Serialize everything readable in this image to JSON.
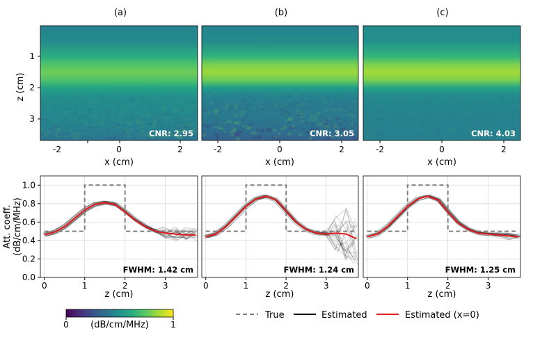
{
  "figure": {
    "panel_labels": [
      "(a)",
      "(b)",
      "(c)"
    ],
    "colorbar": {
      "min_label": "0",
      "max_label": "1",
      "label": "(dB/cm/MHz)"
    },
    "legend": {
      "true_label": "True",
      "estimated_label": "Estimated",
      "estimated_x0_label": "Estimated (x=0)"
    },
    "colors": {
      "true": "#7f7f7f",
      "estimated": "#000000",
      "estimated_x0": "#e31a1c",
      "grid": "#d9d9d9"
    }
  },
  "chart_data": [
    {
      "type": "heatmap",
      "panel": "(a)",
      "xlabel": "x (cm)",
      "ylabel": "z (cm)",
      "xlim": [
        -2.5,
        2.5
      ],
      "ylim": [
        0,
        3.7
      ],
      "xticks": [
        "-2",
        "0",
        "2"
      ],
      "yticks": [
        "1",
        "2",
        "3"
      ],
      "annotation": "CNR: 2.95",
      "depth_profile": {
        "z": [
          0,
          0.5,
          1.0,
          1.25,
          1.5,
          1.75,
          2.0,
          2.25,
          2.5,
          3.0,
          3.5,
          3.7
        ],
        "value": [
          0.45,
          0.48,
          0.62,
          0.72,
          0.78,
          0.72,
          0.58,
          0.5,
          0.48,
          0.46,
          0.42,
          0.38
        ]
      }
    },
    {
      "type": "heatmap",
      "panel": "(b)",
      "xlabel": "x (cm)",
      "ylabel": "",
      "xlim": [
        -2.5,
        2.5
      ],
      "ylim": [
        0,
        3.7
      ],
      "xticks": [
        "-2",
        "0",
        "2"
      ],
      "yticks": [
        "1",
        "2",
        "3"
      ],
      "annotation": "CNR: 3.05",
      "depth_profile": {
        "z": [
          0,
          0.5,
          1.0,
          1.25,
          1.5,
          1.75,
          2.0,
          2.25,
          2.5,
          3.0,
          3.5,
          3.7
        ],
        "value": [
          0.45,
          0.48,
          0.65,
          0.8,
          0.85,
          0.78,
          0.55,
          0.45,
          0.42,
          0.4,
          0.35,
          0.3
        ]
      }
    },
    {
      "type": "heatmap",
      "panel": "(c)",
      "xlabel": "x (cm)",
      "ylabel": "",
      "xlim": [
        -2.5,
        2.5
      ],
      "ylim": [
        0,
        3.7
      ],
      "xticks": [
        "-2",
        "0",
        "2"
      ],
      "yticks": [
        "1",
        "2",
        "3"
      ],
      "annotation": "CNR: 4.03",
      "depth_profile": {
        "z": [
          0,
          0.5,
          1.0,
          1.25,
          1.5,
          1.75,
          2.0,
          2.25,
          2.5,
          3.0,
          3.5,
          3.7
        ],
        "value": [
          0.48,
          0.5,
          0.66,
          0.8,
          0.86,
          0.8,
          0.58,
          0.48,
          0.46,
          0.45,
          0.44,
          0.43
        ]
      }
    },
    {
      "type": "line",
      "panel": "(a)",
      "xlabel": "z (cm)",
      "ylabel": "Att. coeff. (dB/cm/MHz)",
      "xlim": [
        -0.1,
        3.8
      ],
      "ylim": [
        0,
        1.1
      ],
      "xticks": [
        "0",
        "1",
        "2",
        "3"
      ],
      "yticks": [
        "0.0",
        "0.2",
        "0.4",
        "0.6",
        "0.8",
        "1.0"
      ],
      "annotation": "FWHM: 1.42 cm",
      "series": [
        {
          "name": "True",
          "x": [
            0,
            1,
            1,
            2,
            2,
            3.75
          ],
          "y": [
            0.5,
            0.5,
            1.0,
            1.0,
            0.5,
            0.5
          ]
        },
        {
          "name": "Estimated (x=0)",
          "x": [
            0,
            0.25,
            0.5,
            0.75,
            1.0,
            1.25,
            1.5,
            1.75,
            2.0,
            2.25,
            2.5,
            2.75,
            3.0,
            3.25,
            3.5,
            3.75
          ],
          "y": [
            0.46,
            0.49,
            0.55,
            0.64,
            0.73,
            0.79,
            0.81,
            0.79,
            0.71,
            0.62,
            0.55,
            0.5,
            0.48,
            0.47,
            0.46,
            0.46
          ]
        }
      ],
      "spread_beyond_z": 2.7,
      "spread": 0.06
    },
    {
      "type": "line",
      "panel": "(b)",
      "xlabel": "z (cm)",
      "ylabel": "",
      "xlim": [
        -0.1,
        3.8
      ],
      "ylim": [
        0,
        1.1
      ],
      "xticks": [
        "0",
        "1",
        "2",
        "3"
      ],
      "yticks": [
        "0.0",
        "0.2",
        "0.4",
        "0.6",
        "0.8",
        "1.0"
      ],
      "annotation": "FWHM: 1.24 cm",
      "series": [
        {
          "name": "True",
          "x": [
            0,
            1,
            1,
            2,
            2,
            3.75
          ],
          "y": [
            0.5,
            0.5,
            1.0,
            1.0,
            0.5,
            0.5
          ]
        },
        {
          "name": "Estimated (x=0)",
          "x": [
            0,
            0.25,
            0.5,
            0.75,
            1.0,
            1.25,
            1.5,
            1.75,
            2.0,
            2.25,
            2.5,
            2.75,
            3.0,
            3.25,
            3.5,
            3.75
          ],
          "y": [
            0.44,
            0.47,
            0.55,
            0.66,
            0.77,
            0.85,
            0.88,
            0.84,
            0.72,
            0.6,
            0.52,
            0.48,
            0.47,
            0.48,
            0.47,
            0.42
          ]
        }
      ],
      "spread_beyond_z": 3.0,
      "spread": 0.28
    },
    {
      "type": "line",
      "panel": "(c)",
      "xlabel": "z (cm)",
      "ylabel": "",
      "xlim": [
        -0.1,
        3.8
      ],
      "ylim": [
        0,
        1.1
      ],
      "xticks": [
        "0",
        "1",
        "2",
        "3"
      ],
      "yticks": [
        "0.0",
        "0.2",
        "0.4",
        "0.6",
        "0.8",
        "1.0"
      ],
      "annotation": "FWHM: 1.25 cm",
      "series": [
        {
          "name": "True",
          "x": [
            0,
            1,
            1,
            2,
            2,
            3.75
          ],
          "y": [
            0.5,
            0.5,
            1.0,
            1.0,
            0.5,
            0.5
          ]
        },
        {
          "name": "Estimated (x=0)",
          "x": [
            0,
            0.25,
            0.5,
            0.75,
            1.0,
            1.25,
            1.5,
            1.75,
            2.0,
            2.25,
            2.5,
            2.75,
            3.0,
            3.25,
            3.5,
            3.75
          ],
          "y": [
            0.44,
            0.47,
            0.55,
            0.66,
            0.77,
            0.85,
            0.88,
            0.84,
            0.71,
            0.59,
            0.52,
            0.48,
            0.47,
            0.46,
            0.45,
            0.44
          ]
        }
      ],
      "spread_beyond_z": 3.0,
      "spread": 0.03
    }
  ]
}
